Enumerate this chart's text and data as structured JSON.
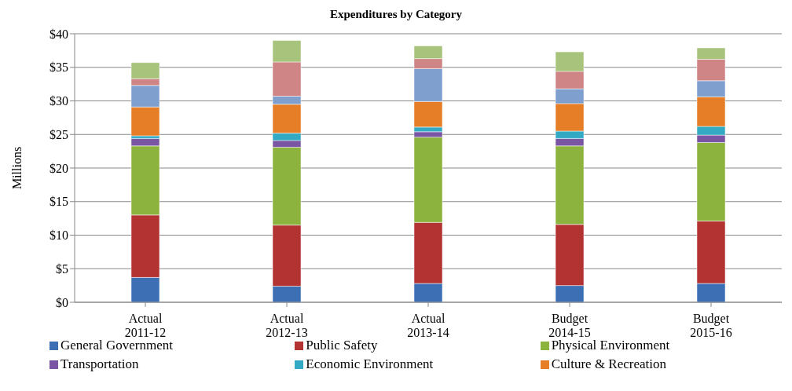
{
  "chart_data": {
    "type": "bar",
    "title": "Expenditures by Category",
    "ylabel": "Millions",
    "stacked": true,
    "categories": [
      "Actual\n2011-12",
      "Actual\n2012-13",
      "Actual\n2013-14",
      "Budget\n2014-15",
      "Budget\n2015-16"
    ],
    "series": [
      {
        "name": "General Government",
        "color": "#3c6fb4",
        "values": [
          3.7,
          2.4,
          2.8,
          2.5,
          2.8
        ]
      },
      {
        "name": "Public Safety",
        "color": "#b33333",
        "values": [
          9.3,
          9.1,
          9.1,
          9.1,
          9.3
        ]
      },
      {
        "name": "Physical Environment",
        "color": "#8db33f",
        "values": [
          10.3,
          11.6,
          12.7,
          11.7,
          11.7
        ]
      },
      {
        "name": "Transportation",
        "color": "#7a55a3",
        "values": [
          1.1,
          1.0,
          0.8,
          1.1,
          1.1
        ]
      },
      {
        "name": "Economic Environment",
        "color": "#33a9c4",
        "values": [
          0.4,
          1.1,
          0.7,
          1.1,
          1.3
        ]
      },
      {
        "name": "Culture & Recreation",
        "color": "#e57e26",
        "values": [
          4.3,
          4.3,
          3.8,
          4.1,
          4.4
        ]
      },
      {
        "color": "#7f9fcf",
        "values": [
          3.2,
          1.2,
          4.9,
          2.2,
          2.4
        ]
      },
      {
        "color": "#cf8485",
        "values": [
          1.0,
          5.1,
          1.5,
          2.6,
          3.2
        ]
      },
      {
        "color": "#a8c47c",
        "values": [
          2.4,
          3.2,
          1.9,
          2.9,
          1.7
        ]
      }
    ],
    "ylim": [
      0,
      40
    ],
    "yticks": [
      {
        "value": 0,
        "label": "$0"
      },
      {
        "value": 5,
        "label": "$5"
      },
      {
        "value": 10,
        "label": "$10"
      },
      {
        "value": 15,
        "label": "$15"
      },
      {
        "value": 20,
        "label": "$20"
      },
      {
        "value": 25,
        "label": "$25"
      },
      {
        "value": 30,
        "label": "$30"
      },
      {
        "value": 35,
        "label": "$35"
      },
      {
        "value": 40,
        "label": "$40"
      }
    ],
    "grid": "y",
    "legend": "bottom"
  }
}
